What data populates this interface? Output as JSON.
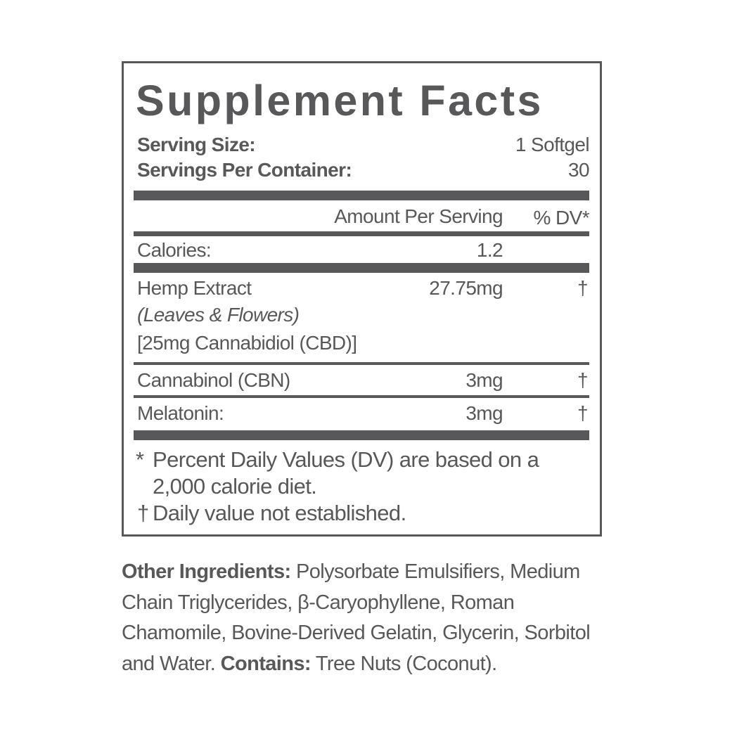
{
  "title": "Supplement Facts",
  "serving_size": {
    "label": "Serving Size:",
    "value": "1 Softgel"
  },
  "servings_per_container": {
    "label": "Servings Per Container:",
    "value": "30"
  },
  "columns": {
    "amount": "Amount Per Serving",
    "dv": "% DV*"
  },
  "calories": {
    "label": "Calories:",
    "amount": "1.2"
  },
  "rows": [
    {
      "name": "Hemp Extract",
      "sub1": "(Leaves & Flowers)",
      "sub2": "[25mg Cannabidiol (CBD)]",
      "amount": "27.75mg",
      "dv": "†"
    },
    {
      "name": "Cannabinol (CBN)",
      "amount": "3mg",
      "dv": "†"
    },
    {
      "name": "Melatonin:",
      "amount": "3mg",
      "dv": "†"
    }
  ],
  "footnotes": {
    "star_symbol": "*",
    "star_line1": "Percent Daily Values (DV) are based on a",
    "star_line2": "2,000 calorie diet.",
    "dagger_symbol": "†",
    "dagger_text": "Daily value not established."
  },
  "other_ingredients": {
    "label": "Other Ingredients:",
    "text": " Polysorbate Emulsifiers, Medium Chain Triglycerides, β-Caryophyllene, Roman Chamomile, Bovine-Derived Gelatin, Glycerin, Sorbitol and Water. ",
    "contains_label": "Contains:",
    "contains_text": " Tree Nuts (Coconut)."
  },
  "colors": {
    "ink": "#58585a",
    "background": "#ffffff"
  }
}
